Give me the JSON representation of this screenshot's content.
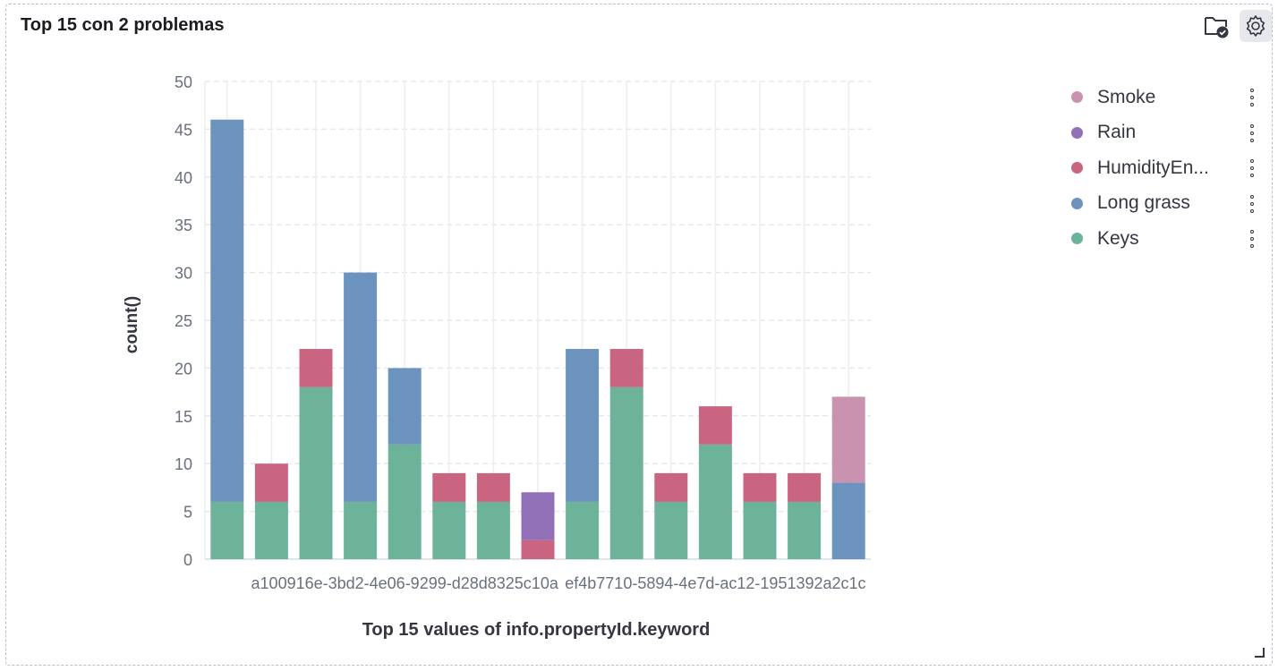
{
  "panel": {
    "title": "Top 15 con 2 problemas",
    "folder_icon": "folder-check-icon",
    "gear_icon": "gear-icon"
  },
  "chart_data": {
    "type": "bar",
    "stacked": true,
    "title": "",
    "xlabel": "Top 15 values of info.propertyId.keyword",
    "ylabel": "count()",
    "ylim": [
      0,
      50
    ],
    "yticks": [
      0,
      5,
      10,
      15,
      20,
      25,
      30,
      35,
      40,
      45,
      50
    ],
    "x_tick_labels": [
      {
        "category_index": 4,
        "text": "a100916e-3bd2-4e06-9299-d28d8325c10a"
      },
      {
        "category_index": 11,
        "text": "ef4b7710-5894-4e7d-ac12-1951392a2c1c"
      }
    ],
    "grid": true,
    "legend_position": "right",
    "categories": [
      "1",
      "2",
      "3",
      "4",
      "5",
      "6",
      "7",
      "8",
      "9",
      "10",
      "11",
      "12",
      "13",
      "14",
      "15"
    ],
    "series": [
      {
        "name": "Keys",
        "color": "#6db399",
        "values": [
          6,
          6,
          18,
          6,
          12,
          6,
          6,
          0,
          6,
          18,
          6,
          12,
          6,
          6,
          0
        ]
      },
      {
        "name": "Long grass",
        "color": "#6c92be",
        "values": [
          40,
          0,
          0,
          24,
          8,
          0,
          0,
          0,
          16,
          0,
          0,
          0,
          0,
          0,
          8
        ]
      },
      {
        "name": "HumidityEn...",
        "color": "#ca6581",
        "values": [
          0,
          4,
          4,
          0,
          0,
          3,
          3,
          2,
          0,
          4,
          3,
          4,
          3,
          3,
          0
        ]
      },
      {
        "name": "Rain",
        "color": "#9170b8",
        "values": [
          0,
          0,
          0,
          0,
          0,
          0,
          0,
          5,
          0,
          0,
          0,
          0,
          0,
          0,
          0
        ]
      },
      {
        "name": "Smoke",
        "color": "#c993b0",
        "values": [
          0,
          0,
          0,
          0,
          0,
          0,
          0,
          0,
          0,
          0,
          0,
          0,
          0,
          0,
          9
        ]
      }
    ],
    "legend_order": [
      "Smoke",
      "Rain",
      "HumidityEn...",
      "Long grass",
      "Keys"
    ],
    "legend_menu_icon": "vertical-ellipsis-icon"
  }
}
